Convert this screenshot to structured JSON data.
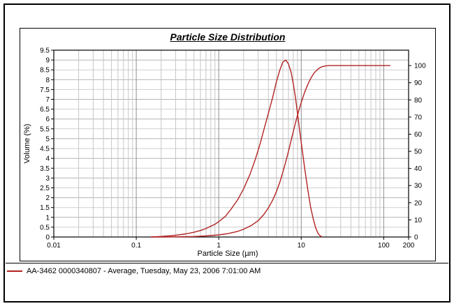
{
  "legend": {
    "swatch_color": "#b22222",
    "label": "AA-3462 0000340807 - Average, Tuesday, May 23, 2006 7:01:00 AM"
  },
  "chart_data": {
    "type": "line",
    "title": "Particle Size Distribution",
    "xlabel": "Particle Size (µm)",
    "ylabel_left": "Volume (%)",
    "x_scale": "log",
    "x_range": [
      0.01,
      200
    ],
    "x_tick_values": [
      0.01,
      0.1,
      1,
      10,
      100,
      200
    ],
    "x_tick_labels": [
      "0.01",
      "0.1",
      "1",
      "10",
      "100",
      "200"
    ],
    "left_axis": {
      "min": 0,
      "max": 9.5,
      "step": 0.5,
      "tick_values": [
        0,
        0.5,
        1,
        1.5,
        2,
        2.5,
        3,
        3.5,
        4,
        4.5,
        5,
        5.5,
        6,
        6.5,
        7,
        7.5,
        8,
        8.5,
        9,
        9.5
      ],
      "tick_labels": [
        "0",
        "0.5",
        "1",
        "1.5",
        "2",
        "2.5",
        "3",
        "3.5",
        "4",
        "4.5",
        "5",
        "5.5",
        "6",
        "6.5",
        "7",
        "7.5",
        "8",
        "8.5",
        "9",
        "9.5"
      ]
    },
    "right_axis": {
      "min": 0,
      "max": 100,
      "display_max": 109,
      "tick_values": [
        0,
        10,
        20,
        30,
        40,
        50,
        60,
        70,
        80,
        90,
        100
      ],
      "tick_labels": [
        "0",
        "10",
        "20",
        "30",
        "40",
        "50",
        "60",
        "70",
        "80",
        "90",
        "100"
      ]
    },
    "grid": {
      "minor_color": "#c6c6c6",
      "major_color": "#8e8e8e",
      "horizontal_minor_color": "#cfcfcf",
      "horizontal_major_color": "#b4b4b4",
      "horizontal_step": 0.5
    },
    "line_color": "#b22222",
    "series": [
      {
        "name": "volume-density",
        "axis": "left",
        "points": [
          [
            0.15,
            0
          ],
          [
            0.2,
            0.03
          ],
          [
            0.25,
            0.06
          ],
          [
            0.3,
            0.09
          ],
          [
            0.4,
            0.16
          ],
          [
            0.5,
            0.24
          ],
          [
            0.6,
            0.33
          ],
          [
            0.7,
            0.43
          ],
          [
            0.8,
            0.55
          ],
          [
            0.9,
            0.65
          ],
          [
            1,
            0.78
          ],
          [
            1.2,
            1.05
          ],
          [
            1.4,
            1.4
          ],
          [
            1.7,
            1.9
          ],
          [
            2,
            2.45
          ],
          [
            2.4,
            3.2
          ],
          [
            2.8,
            4.0
          ],
          [
            3.2,
            4.8
          ],
          [
            3.6,
            5.6
          ],
          [
            4,
            6.3
          ],
          [
            4.5,
            7.1
          ],
          [
            5,
            7.9
          ],
          [
            5.5,
            8.5
          ],
          [
            6,
            8.9
          ],
          [
            6.5,
            9.0
          ],
          [
            7,
            8.8
          ],
          [
            7.5,
            8.4
          ],
          [
            8,
            7.8
          ],
          [
            8.5,
            7.1
          ],
          [
            9,
            6.3
          ],
          [
            9.5,
            5.5
          ],
          [
            10,
            4.8
          ],
          [
            11,
            3.5
          ],
          [
            12,
            2.4
          ],
          [
            13,
            1.5
          ],
          [
            14,
            0.9
          ],
          [
            15,
            0.45
          ],
          [
            16,
            0.18
          ],
          [
            17,
            0.05
          ],
          [
            18,
            0
          ]
        ]
      },
      {
        "name": "cumulative",
        "axis": "right",
        "points": [
          [
            0.15,
            0
          ],
          [
            0.3,
            0.1
          ],
          [
            0.5,
            0.3
          ],
          [
            0.7,
            0.6
          ],
          [
            1,
            1.2
          ],
          [
            1.3,
            2
          ],
          [
            1.7,
            3.3
          ],
          [
            2,
            4.5
          ],
          [
            2.5,
            6.8
          ],
          [
            3,
            9.5
          ],
          [
            3.5,
            13
          ],
          [
            4,
            17
          ],
          [
            4.5,
            21.5
          ],
          [
            5,
            26.5
          ],
          [
            5.5,
            32
          ],
          [
            6,
            38
          ],
          [
            6.5,
            44
          ],
          [
            7,
            50
          ],
          [
            7.5,
            56
          ],
          [
            8,
            61.5
          ],
          [
            8.5,
            66.5
          ],
          [
            9,
            71
          ],
          [
            9.5,
            75
          ],
          [
            10,
            78.5
          ],
          [
            11,
            84.5
          ],
          [
            12,
            89
          ],
          [
            13,
            92.5
          ],
          [
            14,
            95
          ],
          [
            15,
            96.8
          ],
          [
            16,
            98
          ],
          [
            17,
            98.9
          ],
          [
            18,
            99.4
          ],
          [
            19,
            99.7
          ],
          [
            20,
            99.9
          ],
          [
            22,
            100
          ],
          [
            30,
            100
          ],
          [
            50,
            100
          ],
          [
            80,
            100
          ],
          [
            120,
            100
          ]
        ]
      }
    ]
  }
}
